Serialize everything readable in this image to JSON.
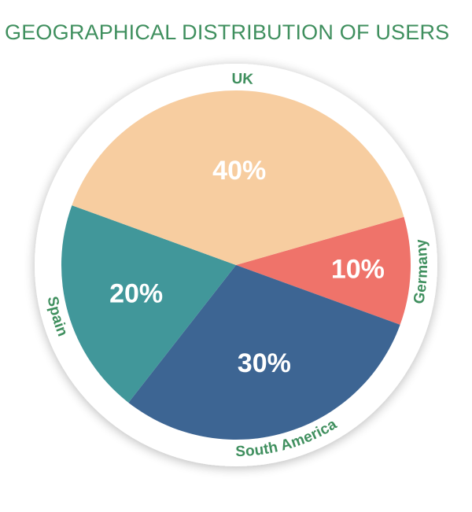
{
  "title": "GEOGRAPHICAL DISTRIBUTION OF USERS",
  "chart_data": {
    "type": "pie",
    "title": "GEOGRAPHICAL DISTRIBUTION OF USERS",
    "categories": [
      "Germany",
      "South America",
      "Spain",
      "UK"
    ],
    "values": [
      10,
      30,
      20,
      40
    ],
    "value_labels": [
      "10%",
      "30%",
      "20%",
      "40%"
    ],
    "colors": [
      "#ef736a",
      "#3d6593",
      "#41979a",
      "#f7cda0"
    ],
    "label_color": "#3f8f5e",
    "ring_color": "#ffffff"
  }
}
